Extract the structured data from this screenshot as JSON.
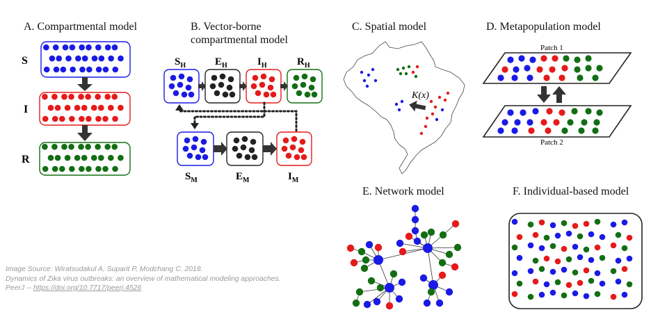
{
  "colors": {
    "susceptible": "#1a1ae6",
    "infected": "#e61a1a",
    "exposed": "#222222",
    "recovered": "#136e13"
  },
  "panels": {
    "a": {
      "title": "A. Compartmental model",
      "labels": [
        "S",
        "I",
        "R"
      ]
    },
    "b": {
      "title_line1": "B. Vector-borne",
      "title_line2": "compartmental model",
      "host_labels": [
        [
          "S",
          "H"
        ],
        [
          "E",
          "H"
        ],
        [
          "I",
          "H"
        ],
        [
          "R",
          "H"
        ]
      ],
      "vector_labels": [
        [
          "S",
          "M"
        ],
        [
          "E",
          "M"
        ],
        [
          "I",
          "M"
        ]
      ]
    },
    "c": {
      "title": "C. Spatial model",
      "kernel_label": "K(x)"
    },
    "d": {
      "title": "D. Metapopulation model",
      "patch1": "Patch 1",
      "patch2": "Patch 2"
    },
    "e": {
      "title": "E. Network model"
    },
    "f": {
      "title": "F. Individual-based model"
    }
  },
  "credit": {
    "line1": "Image Source: Wiratsudakul A, Suparit P, Modchang C. 2018.",
    "line2": "Dynamics of Zika virus outbreaks: an overview of mathematical modeling approaches.",
    "line3_prefix": "PeerJ -- ",
    "link": "https://doi.org/10.7717/peerj.4526"
  }
}
